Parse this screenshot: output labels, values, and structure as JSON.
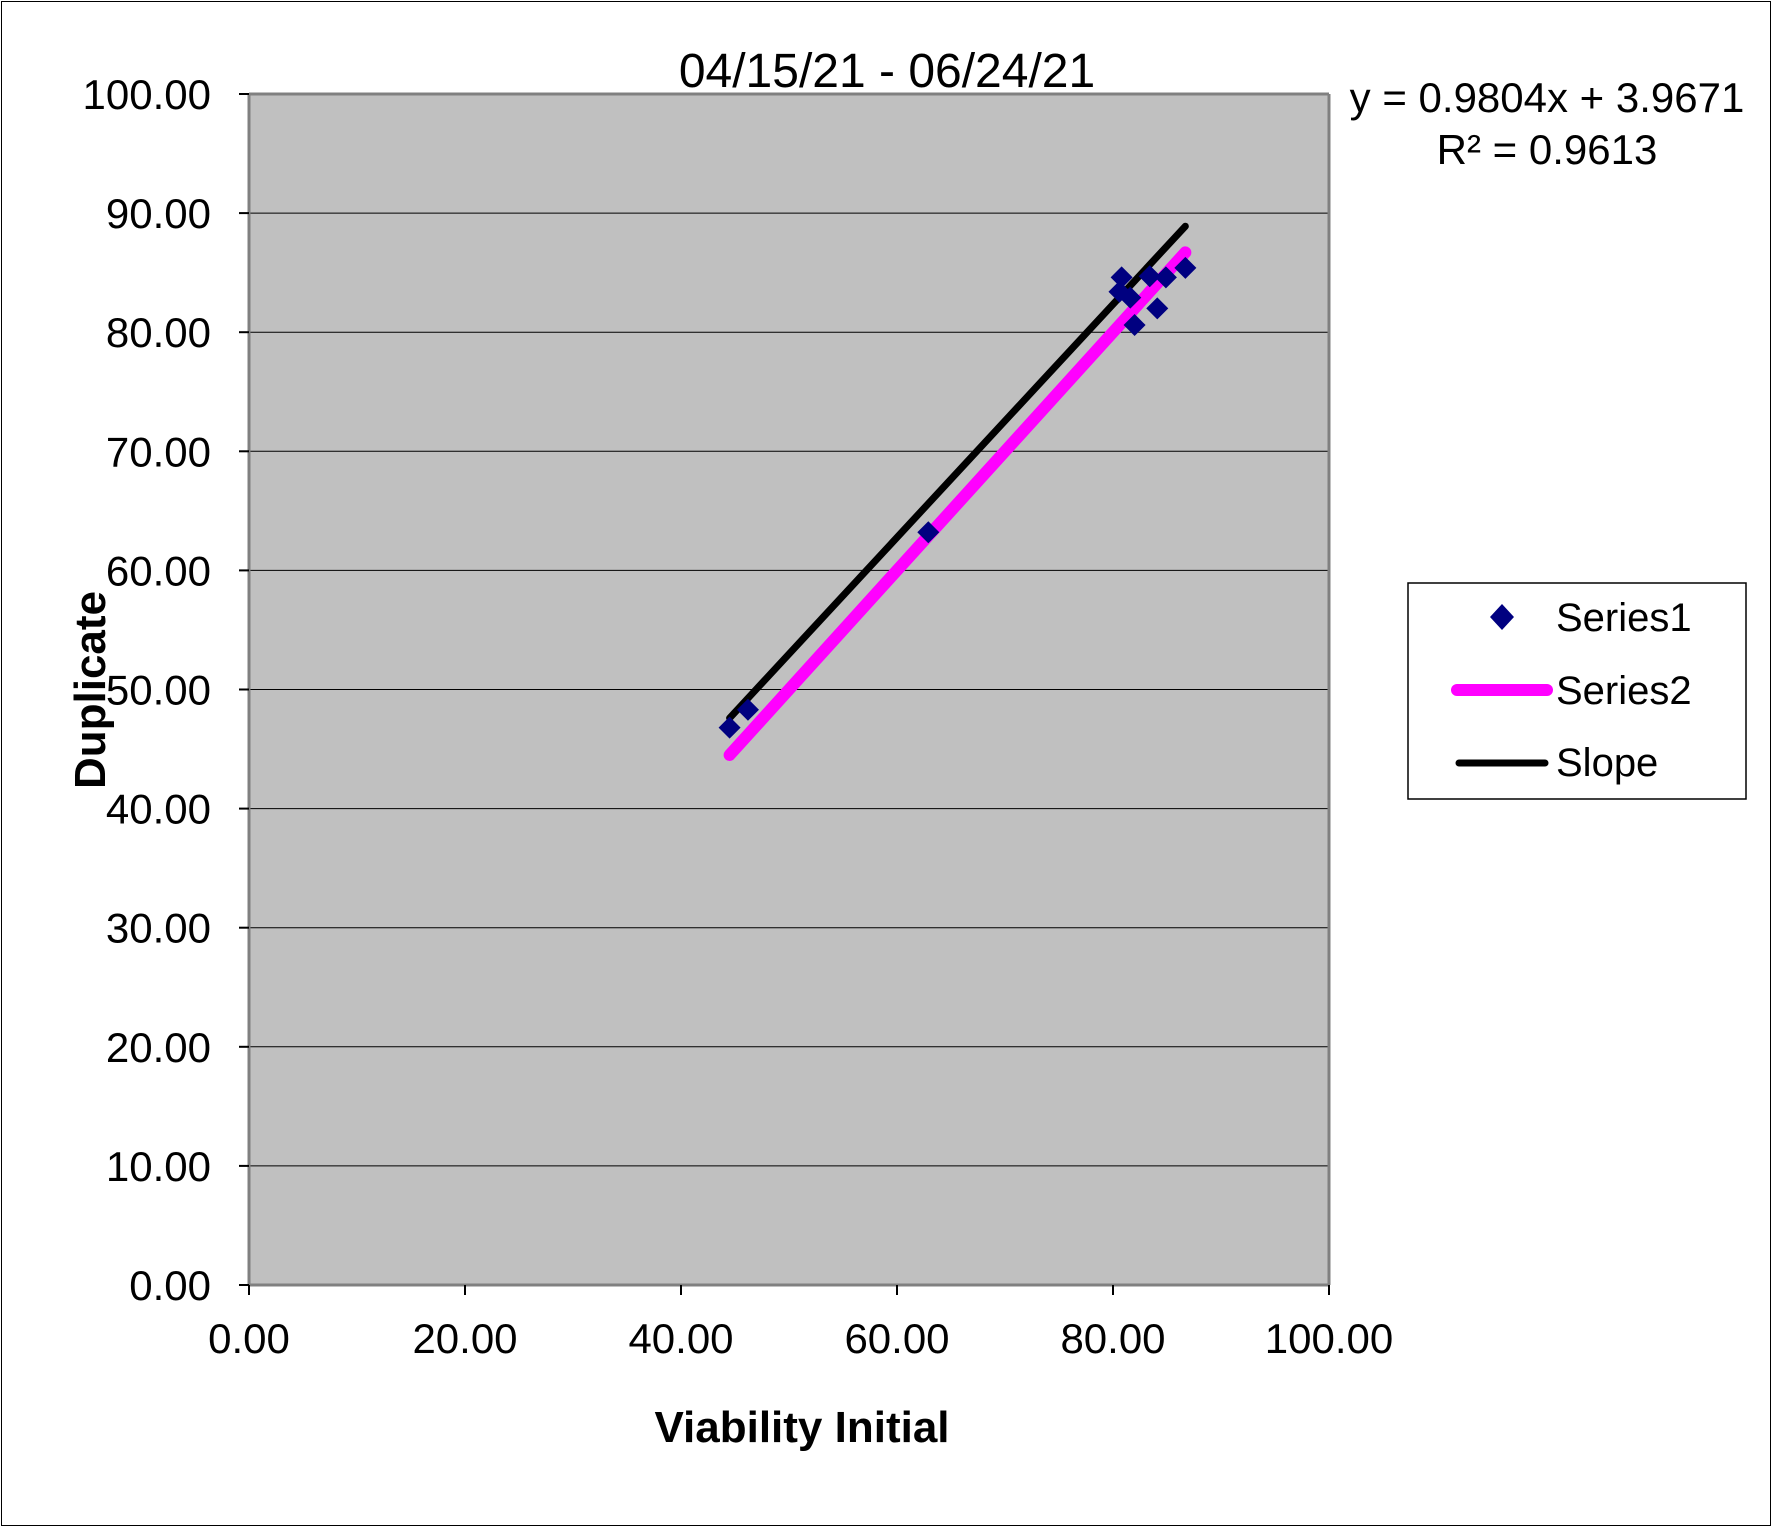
{
  "chart_data": {
    "type": "scatter",
    "title": "04/15/21 - 06/24/21",
    "xlabel": "Viability Initial",
    "ylabel": "Duplicate",
    "xlim": [
      0,
      100
    ],
    "ylim": [
      0,
      100
    ],
    "x_ticks": [
      "0.00",
      "20.00",
      "40.00",
      "60.00",
      "80.00",
      "100.00"
    ],
    "y_ticks": [
      "0.00",
      "10.00",
      "20.00",
      "30.00",
      "40.00",
      "50.00",
      "60.00",
      "70.00",
      "80.00",
      "90.00",
      "100.00"
    ],
    "grid": "horizontal",
    "background": "#c0c0c0",
    "trendline": {
      "equation": "y = 0.9804x + 3.9671",
      "r_squared": "R² = 0.9613"
    },
    "legend_position": "right",
    "series": [
      {
        "name": "Series1",
        "kind": "marker",
        "marker": "diamond",
        "color": "#000080",
        "points": [
          [
            44.5,
            46.8
          ],
          [
            46.2,
            48.3
          ],
          [
            62.9,
            63.2
          ],
          [
            80.6,
            83.4
          ],
          [
            80.8,
            84.6
          ],
          [
            81.6,
            82.9
          ],
          [
            82.0,
            80.6
          ],
          [
            83.4,
            84.7
          ],
          [
            84.1,
            82.0
          ],
          [
            84.9,
            84.6
          ],
          [
            86.7,
            85.4
          ]
        ]
      },
      {
        "name": "Series2",
        "kind": "line",
        "color": "#ff00ff",
        "points": [
          [
            44.5,
            44.5
          ],
          [
            86.7,
            86.7
          ]
        ]
      },
      {
        "name": "Slope",
        "kind": "line",
        "color": "#000000",
        "points": [
          [
            44.5,
            47.6
          ],
          [
            86.7,
            88.9
          ]
        ]
      }
    ]
  }
}
